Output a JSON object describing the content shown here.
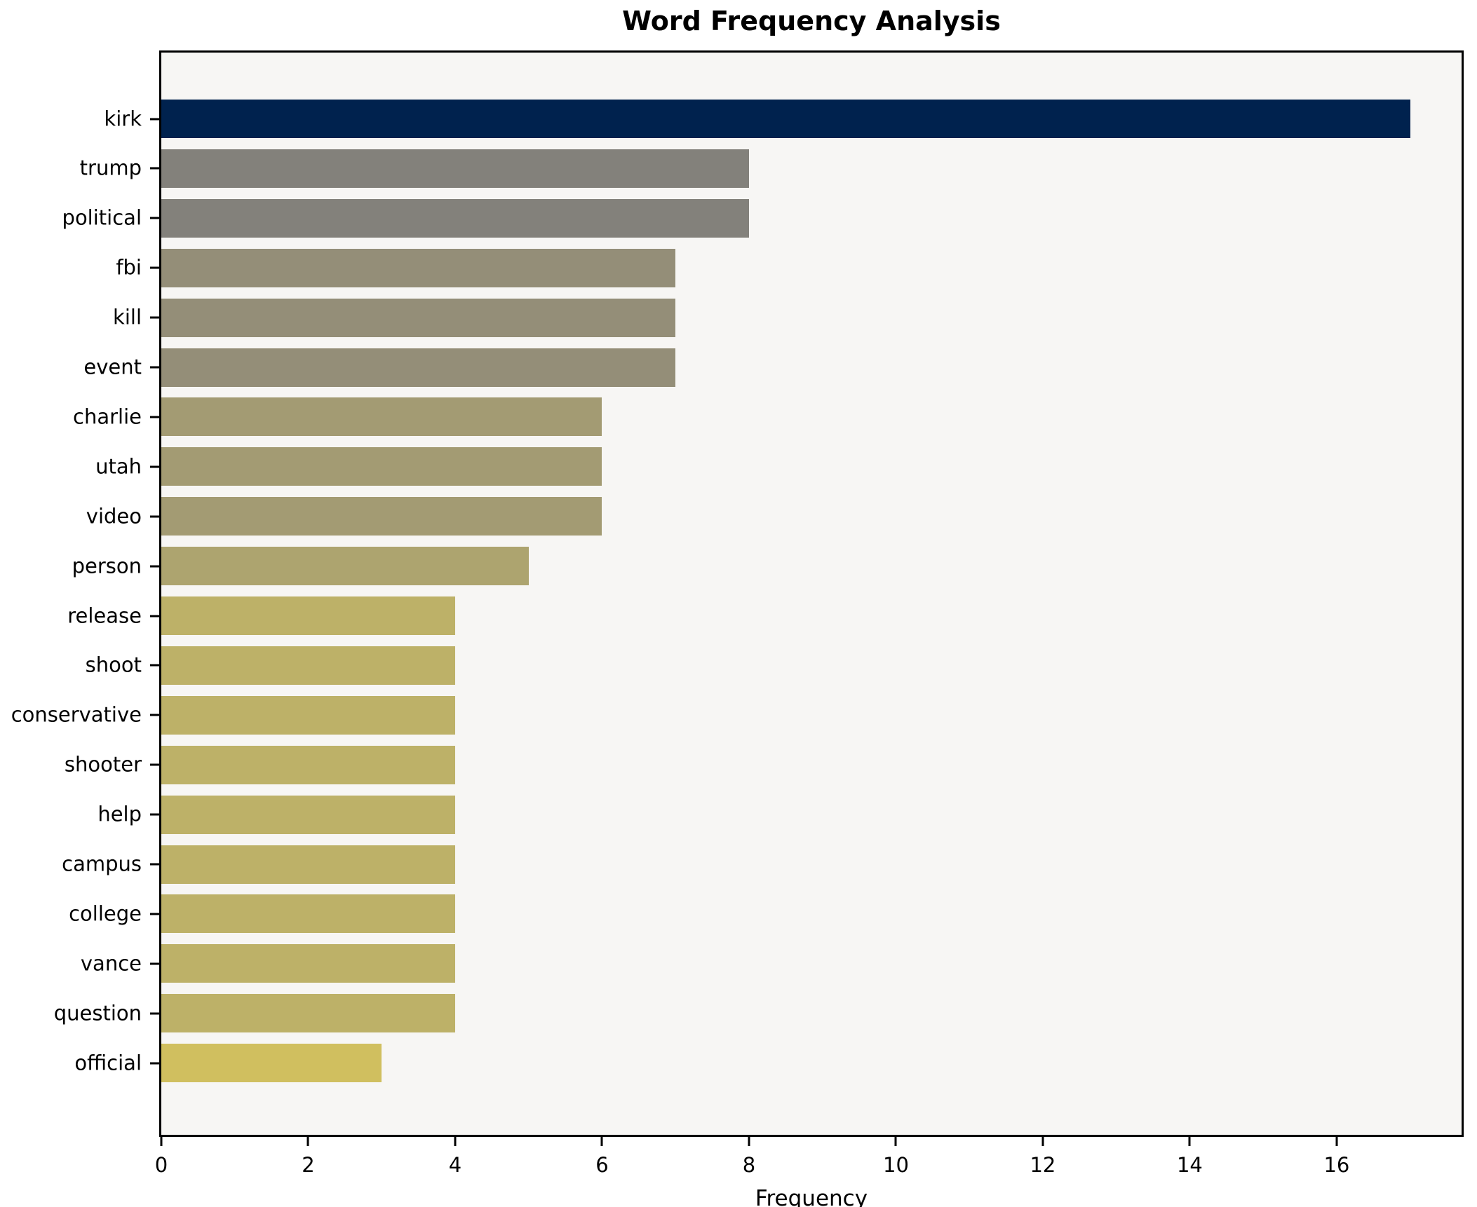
{
  "chart_data": {
    "type": "bar",
    "orientation": "horizontal",
    "title": "Word Frequency Analysis",
    "xlabel": "Frequency",
    "ylabel": "",
    "categories": [
      "kirk",
      "trump",
      "political",
      "fbi",
      "kill",
      "event",
      "charlie",
      "utah",
      "video",
      "person",
      "release",
      "shoot",
      "conservative",
      "shooter",
      "help",
      "campus",
      "college",
      "vance",
      "question",
      "official"
    ],
    "values": [
      17,
      8,
      8,
      7,
      7,
      7,
      6,
      6,
      6,
      5,
      4,
      4,
      4,
      4,
      4,
      4,
      4,
      4,
      4,
      3
    ],
    "bar_colors": [
      "#00224e",
      "#83817b",
      "#83817b",
      "#948e78",
      "#948e78",
      "#948e78",
      "#a39b73",
      "#a39b73",
      "#a39b73",
      "#ada46f",
      "#bdb168",
      "#bdb168",
      "#bdb168",
      "#bdb168",
      "#bdb168",
      "#bdb168",
      "#bdb168",
      "#bdb168",
      "#bdb168",
      "#d0bf5f"
    ],
    "xticks": [
      0,
      2,
      4,
      6,
      8,
      10,
      12,
      14,
      16
    ],
    "xlim": [
      0,
      17.7
    ],
    "grid": false,
    "legend": null,
    "plot_background": "#f7f6f4",
    "figure_background": "#ffffff",
    "axis_color": "#000000"
  }
}
